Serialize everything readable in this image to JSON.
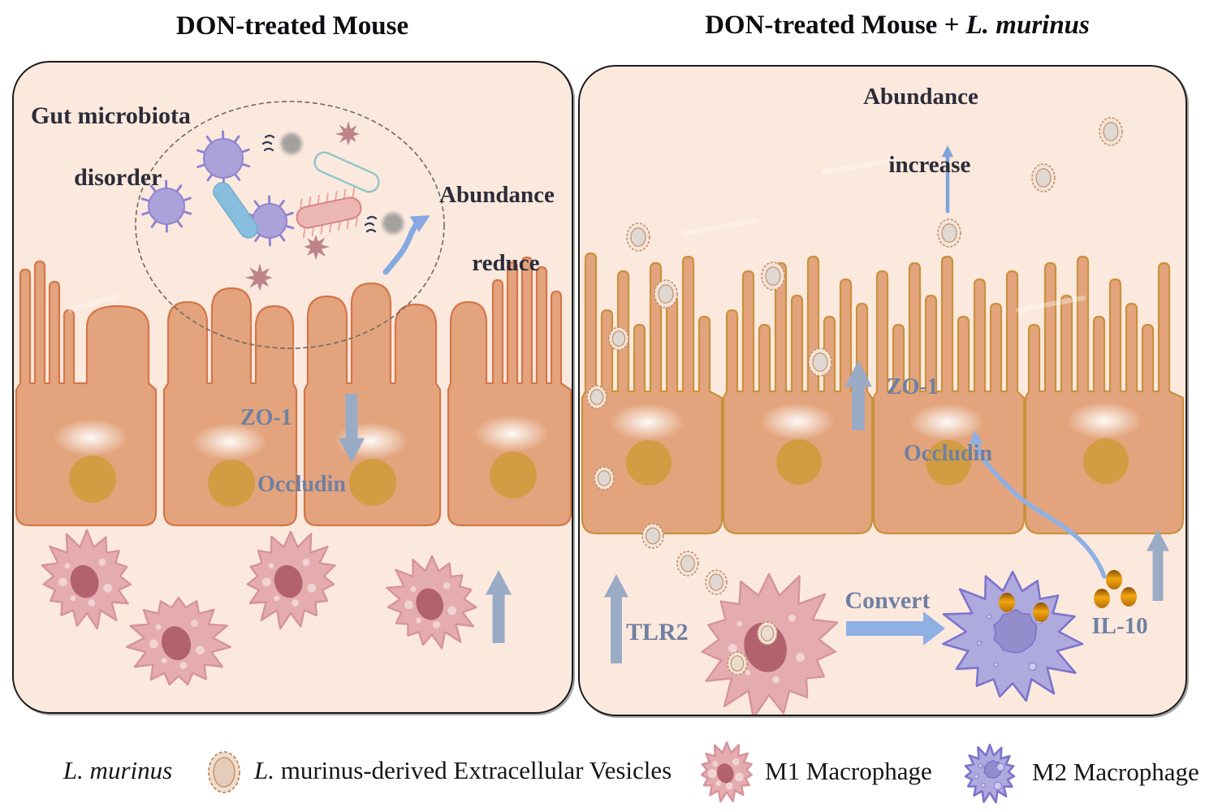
{
  "titles": {
    "left": "DON-treated Mouse",
    "right_prefix": "DON-treated Mouse + ",
    "right_species": "L. murinus"
  },
  "left_panel": {
    "gut_label_line1": "Gut microbiota",
    "gut_label_line2": "disorder",
    "abundance_line1": "Abundance",
    "abundance_line2": "reduce",
    "tight_junction_line1": "ZO-1",
    "tight_junction_line2": "Occludin"
  },
  "right_panel": {
    "abundance_line1": "Abundance",
    "abundance_line2": "increase",
    "tight_junction_line1": "ZO-1",
    "tight_junction_line2": "Occludin",
    "tlr2_label": "TLR2",
    "convert_label": "Convert",
    "il10_label": "IL-10"
  },
  "legend": {
    "lmurinus_label": "L. murinus",
    "ev_label_italic": "L.",
    "ev_label_rest": " murinus-derived Extracellular Vesicles",
    "m1_label": "M1 Macrophage",
    "m2_label": "M2 Macrophage"
  },
  "icons": {
    "vesicle": "vesicle-icon",
    "m1": "m1-macrophage-icon",
    "m2": "m2-macrophage-icon"
  },
  "colors": {
    "panel_background": "#fce9de",
    "epithelium_fill": "#e3a47d",
    "epithelium_border_left": "#d4764a",
    "epithelium_border_right": "#c9913c",
    "nucleus": "#d29c42",
    "m1_body": "#e5acb0",
    "m1_border": "#d6939b",
    "m1_nucleus": "#b2616e",
    "m2_body": "#aeaade",
    "m2_border": "#7c74cb",
    "m2_nucleus": "#938dcb",
    "block_arrow": "#9aabc6",
    "flow_arrow": "#8fb0e2",
    "curve_arrow": "#86a9e2",
    "protein_text": "#6f80a2",
    "il10_dot_bright": "#f2a60f",
    "il10_dot_dark": "#8a4e06",
    "vesicle_ring": "#c08b66",
    "vesicle_core": "#e0d8d2",
    "virus_purple": "#aca2da",
    "rod_blue": "#87bedd",
    "rod_teal_border": "#93c5c8",
    "rod_pink": "#ecb7b2",
    "star_mauve": "#bd8489",
    "microbe_gray": "#8e8e8e",
    "squiggle": "#2e3a57"
  }
}
